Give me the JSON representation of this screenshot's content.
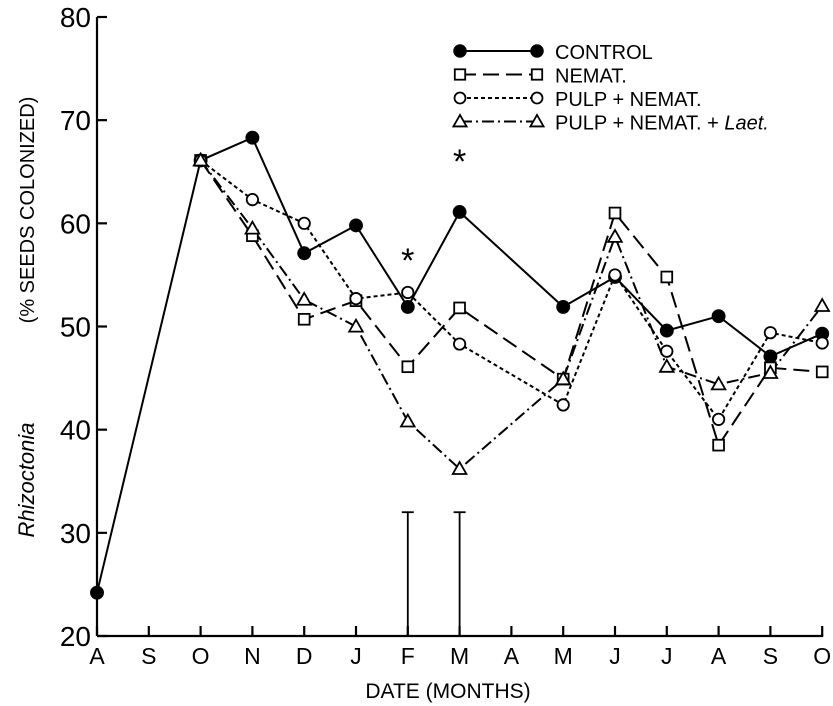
{
  "chart_data": {
    "type": "line",
    "title": "",
    "xlabel": "DATE (MONTHS)",
    "ylabel_main": "(% SEEDS COLONIZED)",
    "ylabel_italic": "Rhizoctonia",
    "ylim": [
      20,
      80
    ],
    "yticks": [
      20,
      30,
      40,
      50,
      60,
      70,
      80
    ],
    "categories": [
      "A",
      "S",
      "O",
      "N",
      "D",
      "J",
      "F",
      "M",
      "A",
      "M",
      "J",
      "J",
      "A",
      "S",
      "O"
    ],
    "grid": false,
    "legend_position": "top-right",
    "series": [
      {
        "name": "CONTROL",
        "name_italic": "",
        "style": "solid",
        "marker": "filled-circle",
        "values": [
          24.2,
          null,
          66.1,
          68.3,
          57.1,
          59.8,
          51.9,
          61.1,
          null,
          51.9,
          54.8,
          49.6,
          51.0,
          47.1,
          49.3
        ]
      },
      {
        "name": "NEMAT.",
        "name_italic": "",
        "style": "long-dash",
        "marker": "open-square",
        "values": [
          null,
          null,
          66.1,
          58.8,
          50.7,
          52.5,
          46.1,
          51.8,
          null,
          44.9,
          61.0,
          54.8,
          38.5,
          46.0,
          45.6
        ]
      },
      {
        "name": "PULP + NEMAT.",
        "name_italic": "",
        "style": "short-dash",
        "marker": "open-circle",
        "values": [
          null,
          null,
          66.1,
          62.3,
          60.0,
          52.7,
          53.3,
          48.3,
          null,
          42.4,
          55.0,
          47.6,
          41.0,
          49.4,
          48.4
        ]
      },
      {
        "name": "PULP + NEMAT. + ",
        "name_italic": "Laet.",
        "style": "dash-dot",
        "marker": "open-triangle",
        "values": [
          null,
          null,
          66.1,
          59.5,
          52.6,
          50.0,
          40.8,
          36.2,
          null,
          44.9,
          58.7,
          46.1,
          44.4,
          45.5,
          52.0
        ]
      }
    ],
    "annotations": [
      {
        "text": "*",
        "category_index": 6,
        "y": 57.2
      },
      {
        "text": "*",
        "category_index": 7,
        "y": 66.8
      }
    ],
    "error_bars": [
      {
        "category_index": 6,
        "from": 20,
        "to": 32
      },
      {
        "category_index": 7,
        "from": 20,
        "to": 32
      }
    ]
  }
}
